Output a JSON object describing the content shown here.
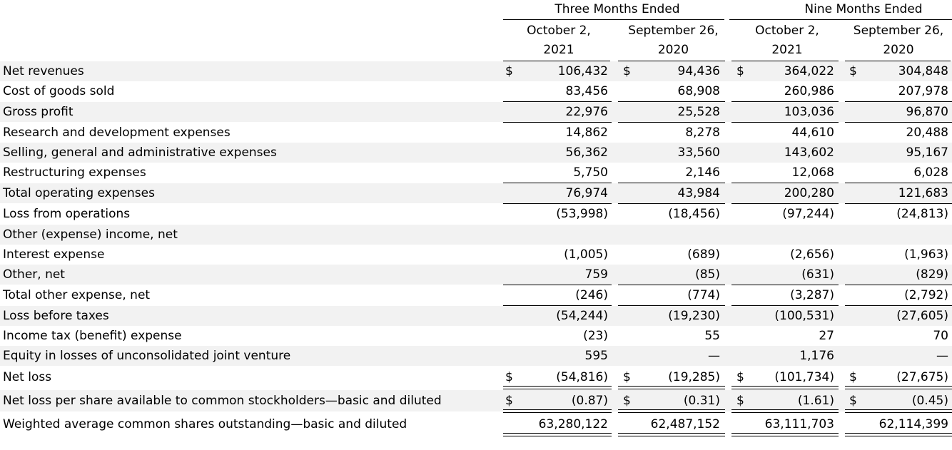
{
  "header": {
    "three_months": "Three Months Ended",
    "nine_months": "Nine Months Ended",
    "col1_a": "October 2,",
    "col1_b": "2021",
    "col2_a": "September 26,",
    "col2_b": "2020",
    "col3_a": "October 2,",
    "col3_b": "2021",
    "col4_a": "September 26,",
    "col4_b": "2020"
  },
  "rows": [
    {
      "label": "Net revenues",
      "dollar": "$",
      "v": [
        "106,432",
        "94,436",
        "364,022",
        "304,848"
      ]
    },
    {
      "label": "Cost of goods sold",
      "dollar": "",
      "v": [
        "83,456",
        "68,908",
        "260,986",
        "207,978"
      ]
    },
    {
      "label": "Gross profit",
      "dollar": "",
      "v": [
        "22,976",
        "25,528",
        "103,036",
        "96,870"
      ]
    },
    {
      "label": "Research and development expenses",
      "dollar": "",
      "v": [
        "14,862",
        "8,278",
        "44,610",
        "20,488"
      ]
    },
    {
      "label": "Selling, general and administrative expenses",
      "dollar": "",
      "v": [
        "56,362",
        "33,560",
        "143,602",
        "95,167"
      ]
    },
    {
      "label": "Restructuring expenses",
      "dollar": "",
      "v": [
        "5,750",
        "2,146",
        "12,068",
        "6,028"
      ]
    },
    {
      "label": "Total operating expenses",
      "dollar": "",
      "v": [
        "76,974",
        "43,984",
        "200,280",
        "121,683"
      ]
    },
    {
      "label": "Loss from operations",
      "dollar": "",
      "v": [
        "(53,998)",
        "(18,456)",
        "(97,244)",
        "(24,813)"
      ]
    },
    {
      "label": "Other (expense) income, net",
      "dollar": "",
      "v": [
        "",
        "",
        "",
        ""
      ]
    },
    {
      "label": "Interest expense",
      "dollar": "",
      "v": [
        "(1,005)",
        "(689)",
        "(2,656)",
        "(1,963)"
      ]
    },
    {
      "label": "Other, net",
      "dollar": "",
      "v": [
        "759",
        "(85)",
        "(631)",
        "(829)"
      ]
    },
    {
      "label": "Total other expense, net",
      "dollar": "",
      "v": [
        "(246)",
        "(774)",
        "(3,287)",
        "(2,792)"
      ]
    },
    {
      "label": "Loss before taxes",
      "dollar": "",
      "v": [
        "(54,244)",
        "(19,230)",
        "(100,531)",
        "(27,605)"
      ]
    },
    {
      "label": "Income tax (benefit) expense",
      "dollar": "",
      "v": [
        "(23)",
        "55",
        "27",
        "70"
      ]
    },
    {
      "label": "Equity in losses of unconsolidated joint venture",
      "dollar": "",
      "v": [
        "595",
        "—",
        "1,176",
        "—"
      ]
    },
    {
      "label": "Net loss",
      "dollar": "$",
      "v": [
        "(54,816)",
        "(19,285)",
        "(101,734)",
        "(27,675)"
      ]
    },
    {
      "label": "Net loss per share available to common stockholders—basic and diluted",
      "dollar": "$",
      "v": [
        "(0.87)",
        "(0.31)",
        "(1.61)",
        "(0.45)"
      ]
    },
    {
      "label": "Weighted average common shares outstanding—basic and diluted",
      "dollar": "",
      "v": [
        "63,280,122",
        "62,487,152",
        "63,111,703",
        "62,114,399"
      ]
    }
  ]
}
